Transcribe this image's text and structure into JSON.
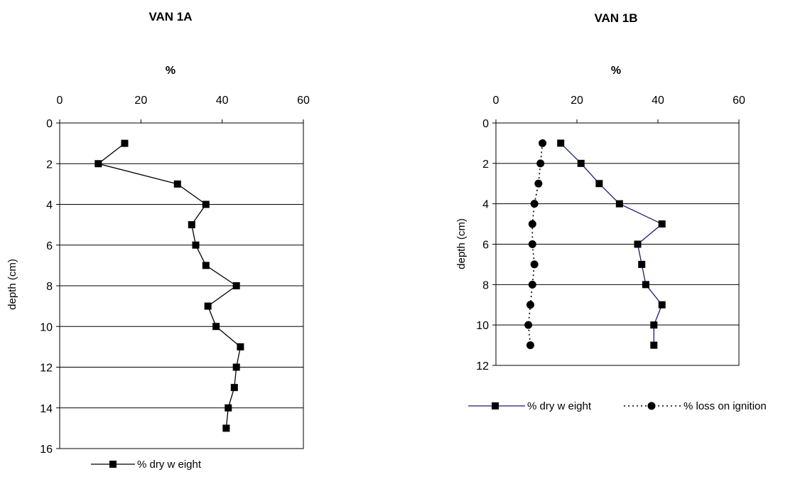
{
  "chart_data": [
    {
      "type": "line",
      "title": "VAN 1A",
      "xlabel": "%",
      "ylabel": "depth (cm)",
      "xlim": [
        0,
        60
      ],
      "ylim": [
        0,
        16
      ],
      "y_inverted": true,
      "x_axis_position": "top",
      "xticks": [
        "0",
        "20",
        "40",
        "60"
      ],
      "yticks": [
        "0",
        "2",
        "4",
        "6",
        "8",
        "10",
        "12",
        "14",
        "16"
      ],
      "grid": "horizontal",
      "legend": "bottom",
      "series": [
        {
          "name": "% dry w eight",
          "color": "#000000",
          "line": "solid",
          "marker": "square",
          "x": [
            16,
            9.5,
            29,
            36,
            32.5,
            33.5,
            36,
            43.5,
            36.5,
            38.5,
            44.5,
            43.5,
            43,
            41.5,
            41
          ],
          "y": [
            1,
            2,
            3,
            4,
            5,
            6,
            7,
            8,
            9,
            10,
            11,
            12,
            13,
            14,
            15
          ]
        }
      ]
    },
    {
      "type": "line",
      "title": "VAN 1B",
      "xlabel": "%",
      "ylabel": "depth (cm)",
      "xlim": [
        0,
        60
      ],
      "ylim": [
        0,
        12
      ],
      "y_inverted": true,
      "x_axis_position": "top",
      "xticks": [
        "0",
        "20",
        "40",
        "60"
      ],
      "yticks": [
        "0",
        "2",
        "4",
        "6",
        "8",
        "10",
        "12"
      ],
      "grid": "horizontal",
      "legend": "bottom",
      "series": [
        {
          "name": "% dry w eight",
          "color": "#1a1a7a",
          "line": "solid",
          "marker": "square",
          "x": [
            16,
            21,
            25.5,
            30.5,
            41,
            35,
            36,
            37,
            41,
            39,
            39
          ],
          "y": [
            1,
            2,
            3,
            4,
            5,
            6,
            7,
            8,
            9,
            10,
            11
          ]
        },
        {
          "name": "% loss on ignition",
          "color": "#000000",
          "line": "dotted",
          "marker": "circle",
          "x": [
            11.5,
            11,
            10.5,
            9.5,
            9,
            9,
            9.5,
            9,
            8.5,
            8,
            8.5
          ],
          "y": [
            1,
            2,
            3,
            4,
            5,
            6,
            7,
            8,
            9,
            10,
            11
          ]
        }
      ]
    }
  ]
}
